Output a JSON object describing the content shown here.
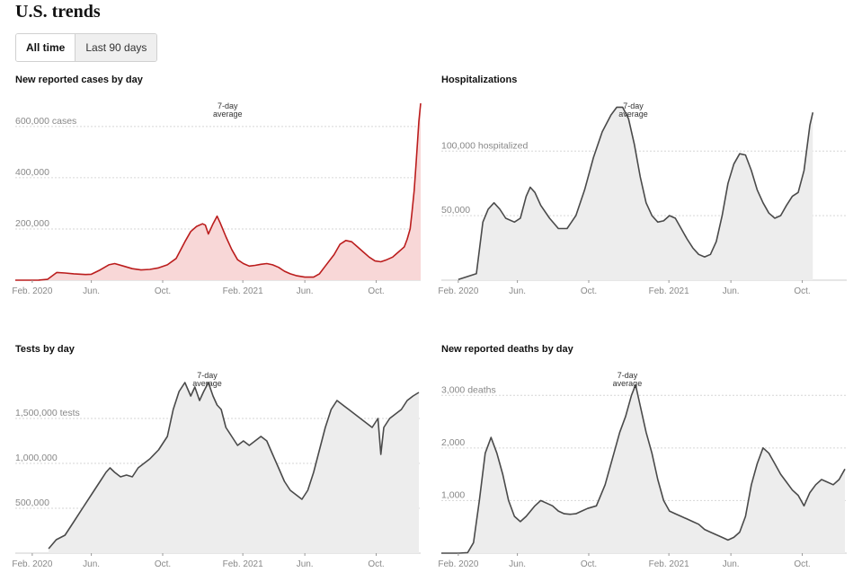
{
  "header": {
    "title": "U.S. trends"
  },
  "toggle": {
    "all_time": "All time",
    "last_90": "Last 90 days"
  },
  "x_ticks": [
    {
      "d": 29,
      "label": "Feb. 2020"
    },
    {
      "d": 130,
      "label": "Jun."
    },
    {
      "d": 252,
      "label": "Oct."
    },
    {
      "d": 389,
      "label": "Feb. 2021"
    },
    {
      "d": 495,
      "label": "Jun."
    },
    {
      "d": 617,
      "label": "Oct."
    }
  ],
  "annotation": {
    "line1": "7-day",
    "line2": "average"
  },
  "colors": {
    "cases_line": "#bb1d1d",
    "cases_fill": "#f8d7d7",
    "grey_line": "#4a4a4a",
    "grey_fill": "#ededed",
    "grid": "#d6d6d6",
    "tick_text": "#888888"
  },
  "chart_data": [
    {
      "type": "area",
      "title": "New reported cases by day",
      "x_unit": "days since Jan. 21, 2020",
      "y_ticks": [
        {
          "v": 200000,
          "label": "200,000"
        },
        {
          "v": 400000,
          "label": "400,000"
        },
        {
          "v": 600000,
          "label": "600,000 cases"
        }
      ],
      "ylim": [
        0,
        680000
      ],
      "annotation_x": 363,
      "series": [
        {
          "points": [
            [
              0,
              0
            ],
            [
              40,
              500
            ],
            [
              55,
              3000
            ],
            [
              71,
              30000
            ],
            [
              85,
              28000
            ],
            [
              100,
              25000
            ],
            [
              120,
              22000
            ],
            [
              130,
              23000
            ],
            [
              145,
              40000
            ],
            [
              160,
              60000
            ],
            [
              170,
              65000
            ],
            [
              185,
              55000
            ],
            [
              200,
              45000
            ],
            [
              215,
              40000
            ],
            [
              230,
              42000
            ],
            [
              245,
              48000
            ],
            [
              260,
              60000
            ],
            [
              275,
              85000
            ],
            [
              290,
              150000
            ],
            [
              300,
              190000
            ],
            [
              310,
              210000
            ],
            [
              320,
              220000
            ],
            [
              325,
              215000
            ],
            [
              330,
              180000
            ],
            [
              338,
              220000
            ],
            [
              345,
              250000
            ],
            [
              350,
              225000
            ],
            [
              360,
              170000
            ],
            [
              370,
              120000
            ],
            [
              380,
              80000
            ],
            [
              390,
              65000
            ],
            [
              400,
              55000
            ],
            [
              410,
              58000
            ],
            [
              420,
              62000
            ],
            [
              430,
              65000
            ],
            [
              440,
              60000
            ],
            [
              450,
              50000
            ],
            [
              460,
              35000
            ],
            [
              470,
              25000
            ],
            [
              480,
              18000
            ],
            [
              495,
              12000
            ],
            [
              510,
              12000
            ],
            [
              520,
              25000
            ],
            [
              530,
              55000
            ],
            [
              545,
              100000
            ],
            [
              555,
              140000
            ],
            [
              565,
              155000
            ],
            [
              575,
              150000
            ],
            [
              585,
              130000
            ],
            [
              595,
              110000
            ],
            [
              605,
              90000
            ],
            [
              615,
              75000
            ],
            [
              625,
              72000
            ],
            [
              635,
              80000
            ],
            [
              645,
              90000
            ],
            [
              650,
              100000
            ],
            [
              655,
              110000
            ],
            [
              660,
              120000
            ],
            [
              665,
              130000
            ],
            [
              670,
              160000
            ],
            [
              675,
              200000
            ],
            [
              678,
              260000
            ],
            [
              682,
              350000
            ],
            [
              685,
              450000
            ],
            [
              688,
              550000
            ],
            [
              690,
              620000
            ],
            [
              693,
              690000
            ]
          ]
        }
      ]
    },
    {
      "type": "area",
      "title": "Hospitalizations",
      "x_unit": "days since Jan. 21, 2020",
      "y_ticks": [
        {
          "v": 50000,
          "label": "50,000"
        },
        {
          "v": 100000,
          "label": "100,000 hospitalized"
        }
      ],
      "ylim": [
        0,
        135000
      ],
      "annotation_x": 328,
      "series": [
        {
          "points": [
            [
              29,
              500
            ],
            [
              60,
              5000
            ],
            [
              71,
              45000
            ],
            [
              80,
              55000
            ],
            [
              90,
              60000
            ],
            [
              100,
              55000
            ],
            [
              110,
              48000
            ],
            [
              125,
              45000
            ],
            [
              135,
              48000
            ],
            [
              145,
              65000
            ],
            [
              152,
              72000
            ],
            [
              160,
              68000
            ],
            [
              170,
              58000
            ],
            [
              185,
              48000
            ],
            [
              200,
              40000
            ],
            [
              215,
              40000
            ],
            [
              230,
              50000
            ],
            [
              245,
              70000
            ],
            [
              260,
              95000
            ],
            [
              275,
              115000
            ],
            [
              290,
              128000
            ],
            [
              300,
              134000
            ],
            [
              310,
              134000
            ],
            [
              320,
              125000
            ],
            [
              330,
              105000
            ],
            [
              340,
              80000
            ],
            [
              350,
              60000
            ],
            [
              360,
              50000
            ],
            [
              370,
              45000
            ],
            [
              380,
              46000
            ],
            [
              390,
              50000
            ],
            [
              400,
              48000
            ],
            [
              410,
              40000
            ],
            [
              420,
              32000
            ],
            [
              430,
              25000
            ],
            [
              440,
              20000
            ],
            [
              450,
              18000
            ],
            [
              460,
              20000
            ],
            [
              470,
              30000
            ],
            [
              480,
              50000
            ],
            [
              490,
              75000
            ],
            [
              500,
              90000
            ],
            [
              510,
              98000
            ],
            [
              520,
              97000
            ],
            [
              530,
              85000
            ],
            [
              540,
              70000
            ],
            [
              550,
              60000
            ],
            [
              560,
              52000
            ],
            [
              570,
              48000
            ],
            [
              580,
              50000
            ],
            [
              590,
              58000
            ],
            [
              600,
              65000
            ],
            [
              610,
              68000
            ],
            [
              620,
              85000
            ],
            [
              630,
              120000
            ],
            [
              635,
              130000
            ]
          ]
        }
      ]
    },
    {
      "type": "area",
      "title": "Tests by day",
      "x_unit": "days since Jan. 21, 2020",
      "y_ticks": [
        {
          "v": 500000,
          "label": "500,000"
        },
        {
          "v": 1000000,
          "label": "1,000,000"
        },
        {
          "v": 1500000,
          "label": "1,500,000 tests"
        }
      ],
      "ylim": [
        0,
        1980000
      ],
      "annotation_x": 328,
      "series": [
        {
          "points": [
            [
              57,
              50000
            ],
            [
              70,
              150000
            ],
            [
              85,
              200000
            ],
            [
              100,
              350000
            ],
            [
              115,
              500000
            ],
            [
              130,
              650000
            ],
            [
              145,
              800000
            ],
            [
              155,
              900000
            ],
            [
              162,
              950000
            ],
            [
              170,
              900000
            ],
            [
              180,
              850000
            ],
            [
              190,
              870000
            ],
            [
              200,
              850000
            ],
            [
              210,
              950000
            ],
            [
              220,
              1000000
            ],
            [
              230,
              1050000
            ],
            [
              245,
              1150000
            ],
            [
              260,
              1300000
            ],
            [
              270,
              1600000
            ],
            [
              280,
              1800000
            ],
            [
              290,
              1900000
            ],
            [
              300,
              1750000
            ],
            [
              307,
              1850000
            ],
            [
              315,
              1700000
            ],
            [
              322,
              1800000
            ],
            [
              330,
              1900000
            ],
            [
              338,
              1750000
            ],
            [
              345,
              1650000
            ],
            [
              352,
              1600000
            ],
            [
              360,
              1400000
            ],
            [
              370,
              1300000
            ],
            [
              380,
              1200000
            ],
            [
              390,
              1250000
            ],
            [
              400,
              1200000
            ],
            [
              410,
              1250000
            ],
            [
              420,
              1300000
            ],
            [
              430,
              1250000
            ],
            [
              440,
              1100000
            ],
            [
              450,
              950000
            ],
            [
              460,
              800000
            ],
            [
              470,
              700000
            ],
            [
              480,
              650000
            ],
            [
              490,
              600000
            ],
            [
              500,
              700000
            ],
            [
              510,
              900000
            ],
            [
              520,
              1150000
            ],
            [
              530,
              1400000
            ],
            [
              540,
              1600000
            ],
            [
              550,
              1700000
            ],
            [
              560,
              1650000
            ],
            [
              570,
              1600000
            ],
            [
              580,
              1550000
            ],
            [
              590,
              1500000
            ],
            [
              600,
              1450000
            ],
            [
              610,
              1400000
            ],
            [
              620,
              1500000
            ],
            [
              625,
              1100000
            ],
            [
              630,
              1400000
            ],
            [
              640,
              1500000
            ],
            [
              650,
              1550000
            ],
            [
              660,
              1600000
            ],
            [
              670,
              1700000
            ],
            [
              680,
              1750000
            ],
            [
              690,
              1790000
            ]
          ]
        }
      ]
    },
    {
      "type": "area",
      "title": "New reported deaths by day",
      "x_unit": "days since Jan. 21, 2020",
      "y_ticks": [
        {
          "v": 1000,
          "label": "1,000"
        },
        {
          "v": 2000,
          "label": "2,000"
        },
        {
          "v": 3000,
          "label": "3,000 deaths"
        }
      ],
      "ylim": [
        0,
        3380
      ],
      "annotation_x": 318,
      "series": [
        {
          "points": [
            [
              0,
              0
            ],
            [
              30,
              0
            ],
            [
              45,
              10
            ],
            [
              55,
              200
            ],
            [
              65,
              1000
            ],
            [
              75,
              1900
            ],
            [
              85,
              2200
            ],
            [
              95,
              1900
            ],
            [
              105,
              1500
            ],
            [
              115,
              1000
            ],
            [
              125,
              700
            ],
            [
              135,
              600
            ],
            [
              145,
              700
            ],
            [
              160,
              900
            ],
            [
              170,
              1000
            ],
            [
              180,
              950
            ],
            [
              190,
              900
            ],
            [
              200,
              800
            ],
            [
              210,
              750
            ],
            [
              220,
              740
            ],
            [
              230,
              750
            ],
            [
              240,
              800
            ],
            [
              250,
              850
            ],
            [
              265,
              900
            ],
            [
              280,
              1300
            ],
            [
              295,
              1900
            ],
            [
              305,
              2300
            ],
            [
              315,
              2600
            ],
            [
              325,
              3000
            ],
            [
              332,
              3200
            ],
            [
              340,
              2800
            ],
            [
              350,
              2300
            ],
            [
              360,
              1900
            ],
            [
              370,
              1400
            ],
            [
              380,
              1000
            ],
            [
              390,
              800
            ],
            [
              400,
              750
            ],
            [
              410,
              700
            ],
            [
              420,
              650
            ],
            [
              430,
              600
            ],
            [
              440,
              550
            ],
            [
              450,
              450
            ],
            [
              460,
              400
            ],
            [
              470,
              350
            ],
            [
              480,
              300
            ],
            [
              490,
              250
            ],
            [
              500,
              300
            ],
            [
              510,
              400
            ],
            [
              520,
              700
            ],
            [
              530,
              1300
            ],
            [
              540,
              1700
            ],
            [
              550,
              2000
            ],
            [
              560,
              1900
            ],
            [
              570,
              1700
            ],
            [
              580,
              1500
            ],
            [
              590,
              1350
            ],
            [
              600,
              1200
            ],
            [
              610,
              1100
            ],
            [
              620,
              900
            ],
            [
              630,
              1150
            ],
            [
              640,
              1300
            ],
            [
              650,
              1400
            ],
            [
              660,
              1350
            ],
            [
              670,
              1300
            ],
            [
              680,
              1400
            ],
            [
              690,
              1600
            ]
          ]
        }
      ]
    }
  ]
}
